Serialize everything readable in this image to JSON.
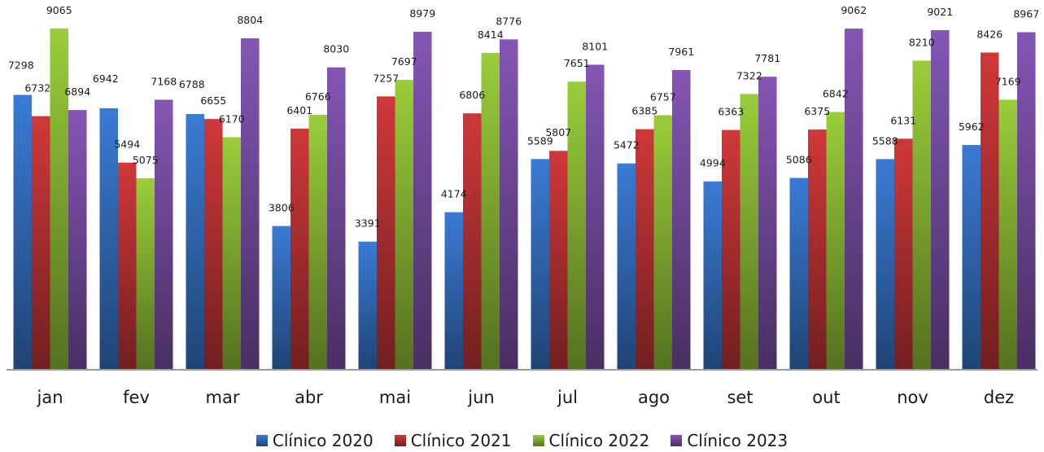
{
  "chart_data": {
    "type": "bar",
    "categories": [
      "jan",
      "fev",
      "mar",
      "abr",
      "mai",
      "jun",
      "jul",
      "ago",
      "set",
      "out",
      "nov",
      "dez"
    ],
    "series": [
      {
        "name": "Clínico 2020",
        "color": "#3a7bd5",
        "values": [
          7298,
          6942,
          6788,
          3806,
          3391,
          4174,
          5589,
          5472,
          4994,
          5086,
          5588,
          5962
        ]
      },
      {
        "name": "Clínico 2021",
        "color": "#d0383a",
        "values": [
          6732,
          5494,
          6655,
          6401,
          7257,
          6806,
          5807,
          6385,
          6363,
          6375,
          6131,
          8426
        ]
      },
      {
        "name": "Clínico 2022",
        "color": "#9acd3a",
        "values": [
          9065,
          5075,
          6170,
          6766,
          7697,
          8414,
          7651,
          6757,
          7322,
          6842,
          8210,
          7169
        ]
      },
      {
        "name": "Clínico 2023",
        "color": "#8456b4",
        "values": [
          6894,
          7168,
          8804,
          8030,
          8979,
          8776,
          8101,
          7961,
          7781,
          9062,
          9021,
          8967
        ]
      }
    ],
    "ylim": [
      0,
      9065
    ],
    "grid": false,
    "legend_position": "bottom"
  }
}
